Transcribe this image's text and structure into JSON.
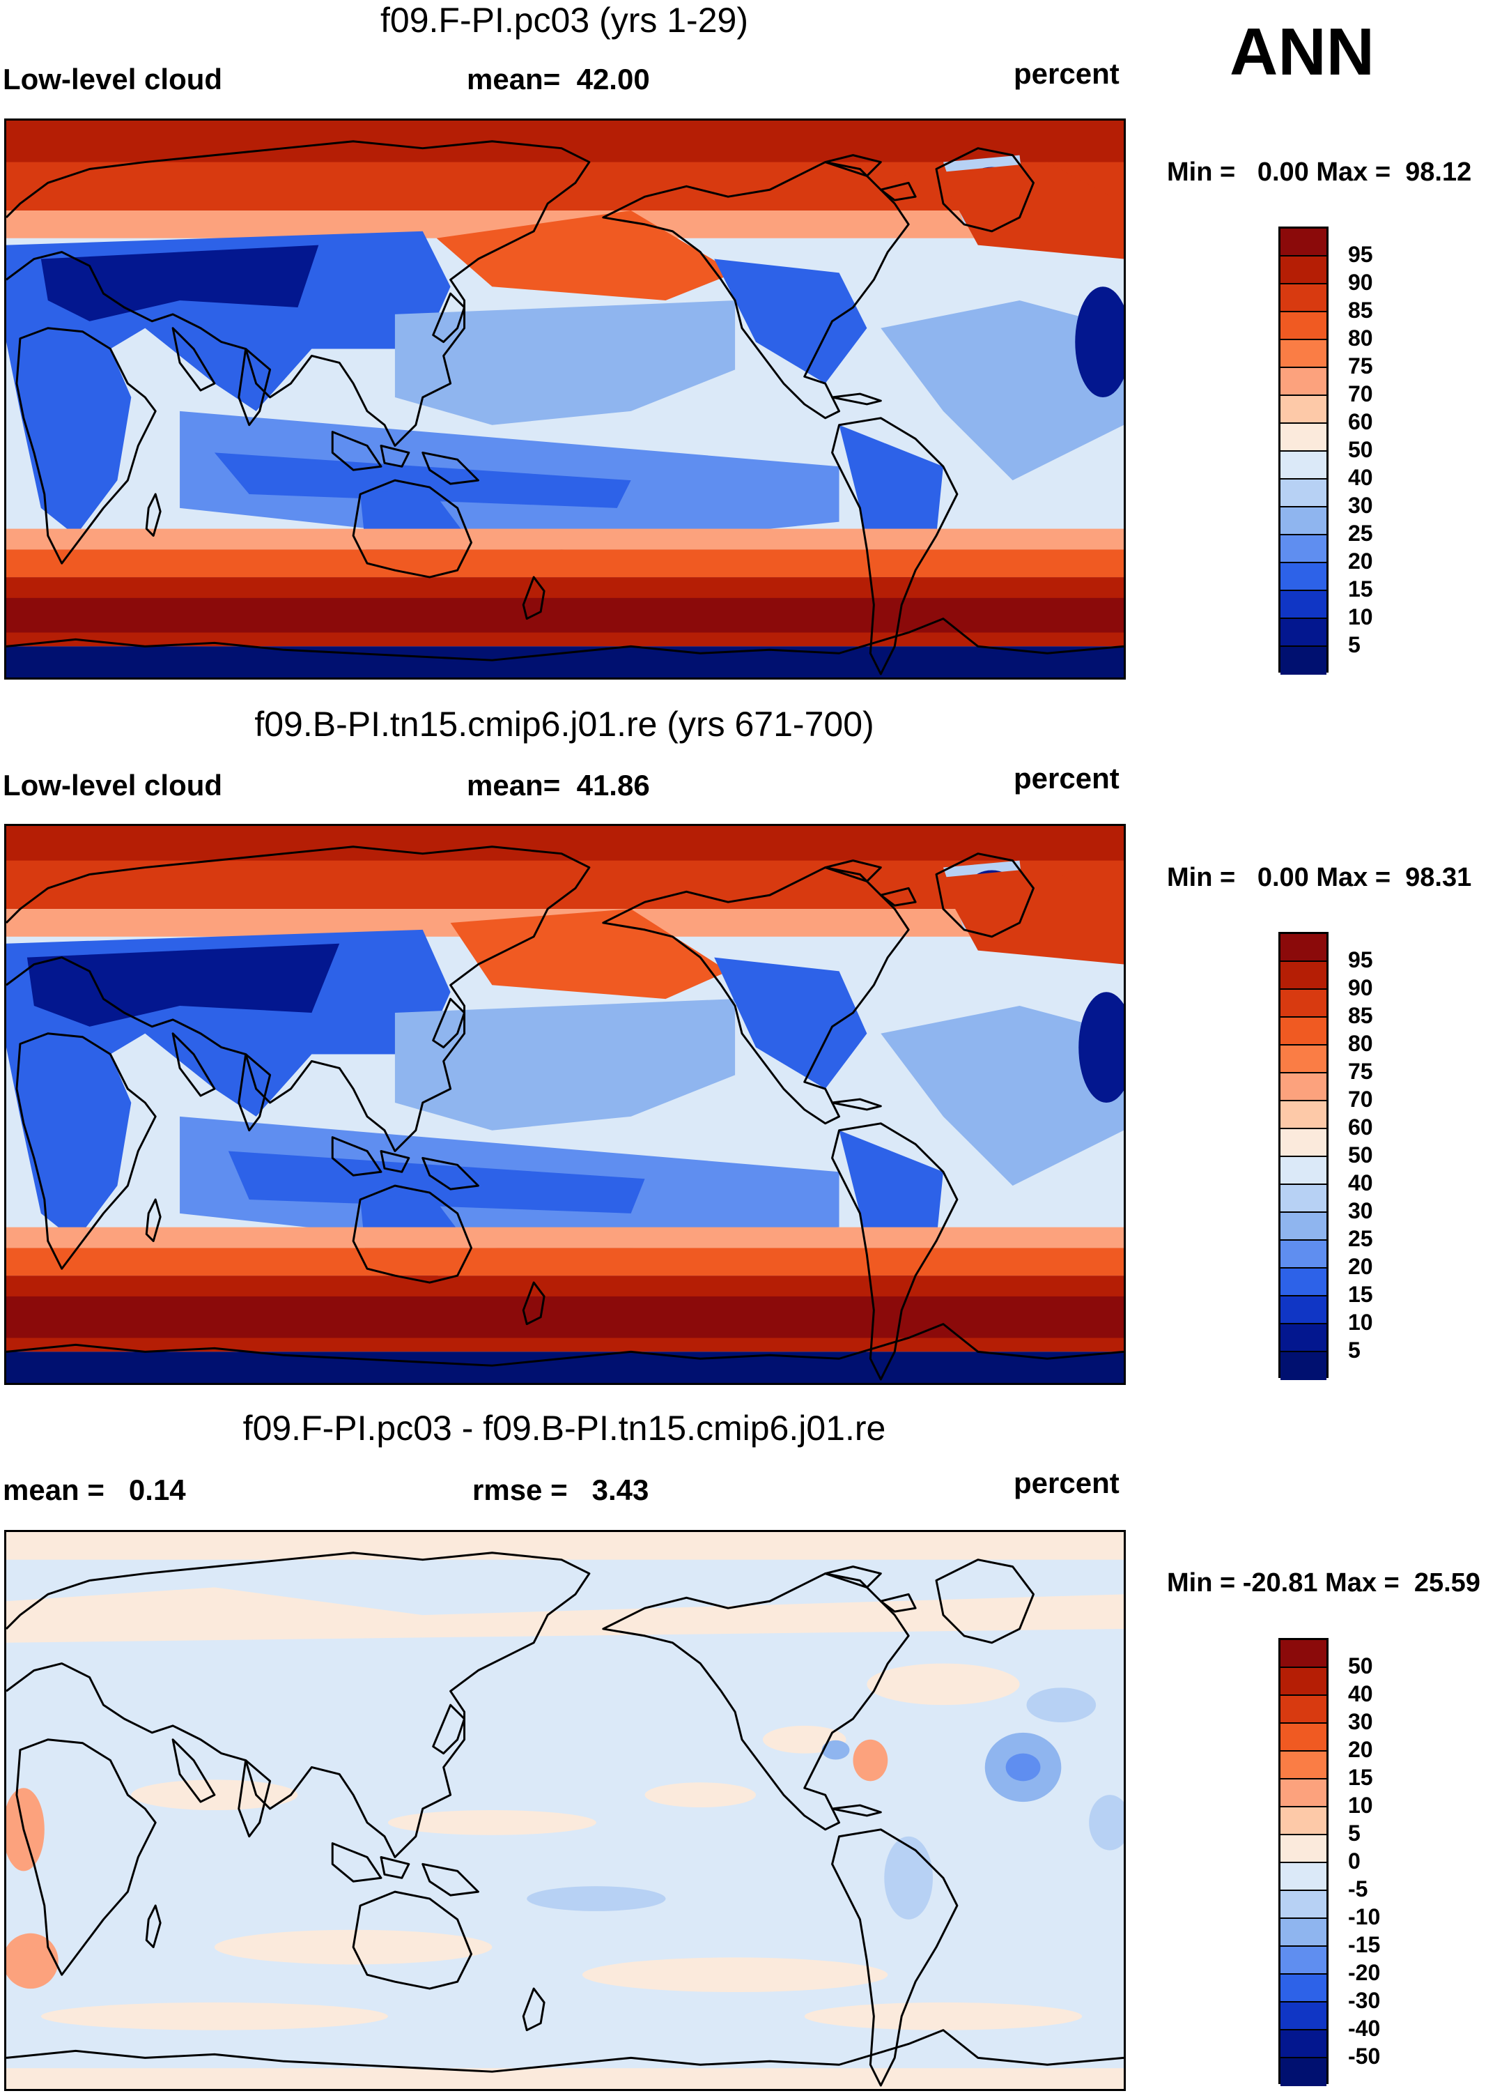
{
  "season": "ANN",
  "variable_label": "Low-level cloud",
  "units": "percent",
  "panels": [
    {
      "title": "f09.F-PI.pc03 (yrs 1-29)",
      "left_label": "Low-level cloud",
      "mean_text": "mean=  42.00",
      "right_label": "percent",
      "minmax_text": "Min =   0.00 Max =  98.12",
      "type": "absolute"
    },
    {
      "title": "f09.B-PI.tn15.cmip6.j01.re (yrs 671-700)",
      "left_label": "Low-level cloud",
      "mean_text": "mean=  41.86",
      "right_label": "percent",
      "minmax_text": "Min =   0.00 Max =  98.31",
      "type": "absolute"
    },
    {
      "title": "f09.F-PI.pc03 - f09.B-PI.tn15.cmip6.j01.re",
      "left_label": "mean =   0.14",
      "mean_text": "rmse =   3.43",
      "right_label": "percent",
      "minmax_text": "Min = -20.81 Max =  25.59",
      "type": "difference"
    }
  ],
  "colorbar_abs": {
    "levels": [
      "95",
      "90",
      "85",
      "80",
      "75",
      "70",
      "60",
      "50",
      "40",
      "30",
      "25",
      "20",
      "15",
      "10",
      "5"
    ],
    "colors": [
      "#8b0a0a",
      "#b51e05",
      "#d83a10",
      "#f05a22",
      "#fa7d45",
      "#fca27d",
      "#fdc9a8",
      "#fbeadc",
      "#dbe9f8",
      "#b7d1f4",
      "#8fb5ef",
      "#5f8ef0",
      "#2d62e8",
      "#1036c5",
      "#03178f",
      "#001070"
    ]
  },
  "colorbar_diff": {
    "levels": [
      "50",
      "40",
      "30",
      "20",
      "15",
      "10",
      "5",
      "0",
      "-5",
      "-10",
      "-15",
      "-20",
      "-30",
      "-40",
      "-50"
    ],
    "colors": [
      "#8b0a0a",
      "#b51e05",
      "#d83a10",
      "#f05a22",
      "#fa7d45",
      "#fca27d",
      "#fdc9a8",
      "#fbeadc",
      "#dbe9f8",
      "#b7d1f4",
      "#8fb5ef",
      "#5f8ef0",
      "#2d62e8",
      "#1036c5",
      "#03178f",
      "#001070"
    ]
  }
}
